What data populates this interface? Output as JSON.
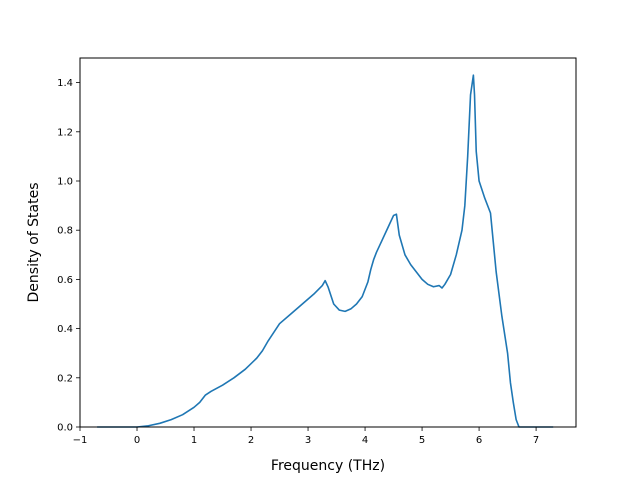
{
  "chart_data": {
    "type": "line",
    "title": "",
    "xlabel": "Frequency (THz)",
    "ylabel": "Density of States",
    "xlim": [
      -1.0,
      7.7
    ],
    "ylim": [
      0.0,
      1.5
    ],
    "xticks": [
      -1,
      0,
      1,
      2,
      3,
      4,
      5,
      6,
      7
    ],
    "xtick_labels": [
      "−1",
      "0",
      "1",
      "2",
      "3",
      "4",
      "5",
      "6",
      "7"
    ],
    "yticks": [
      0.0,
      0.2,
      0.4,
      0.6,
      0.8,
      1.0,
      1.2,
      1.4
    ],
    "ytick_labels": [
      "0.0",
      "0.2",
      "0.4",
      "0.6",
      "0.8",
      "1.0",
      "1.2",
      "1.4"
    ],
    "grid": false,
    "series": [
      {
        "color": "#1f77b4",
        "x": [
          -0.7,
          -0.3,
          0.0,
          0.2,
          0.4,
          0.6,
          0.8,
          1.0,
          1.1,
          1.2,
          1.3,
          1.5,
          1.7,
          1.9,
          2.1,
          2.2,
          2.3,
          2.5,
          2.7,
          2.9,
          3.1,
          3.25,
          3.3,
          3.35,
          3.45,
          3.55,
          3.65,
          3.75,
          3.85,
          3.95,
          4.05,
          4.1,
          4.15,
          4.2,
          4.3,
          4.4,
          4.5,
          4.55,
          4.6,
          4.7,
          4.8,
          4.9,
          5.0,
          5.1,
          5.2,
          5.3,
          5.35,
          5.4,
          5.5,
          5.6,
          5.7,
          5.75,
          5.8,
          5.82,
          5.85,
          5.9,
          5.92,
          5.95,
          6.0,
          6.1,
          6.2,
          6.25,
          6.3,
          6.4,
          6.5,
          6.55,
          6.6,
          6.65,
          6.7,
          7.0,
          7.3
        ],
        "y": [
          0.0,
          0.0,
          0.0,
          0.005,
          0.015,
          0.03,
          0.05,
          0.08,
          0.1,
          0.13,
          0.145,
          0.17,
          0.2,
          0.235,
          0.28,
          0.31,
          0.35,
          0.42,
          0.46,
          0.5,
          0.54,
          0.575,
          0.595,
          0.57,
          0.5,
          0.475,
          0.47,
          0.48,
          0.5,
          0.53,
          0.59,
          0.64,
          0.68,
          0.71,
          0.76,
          0.81,
          0.86,
          0.865,
          0.78,
          0.7,
          0.66,
          0.63,
          0.6,
          0.58,
          0.57,
          0.575,
          0.565,
          0.58,
          0.62,
          0.7,
          0.8,
          0.9,
          1.1,
          1.2,
          1.35,
          1.43,
          1.35,
          1.12,
          1.0,
          0.93,
          0.87,
          0.75,
          0.63,
          0.45,
          0.3,
          0.18,
          0.1,
          0.03,
          0.0,
          0.0,
          0.0
        ]
      }
    ]
  }
}
